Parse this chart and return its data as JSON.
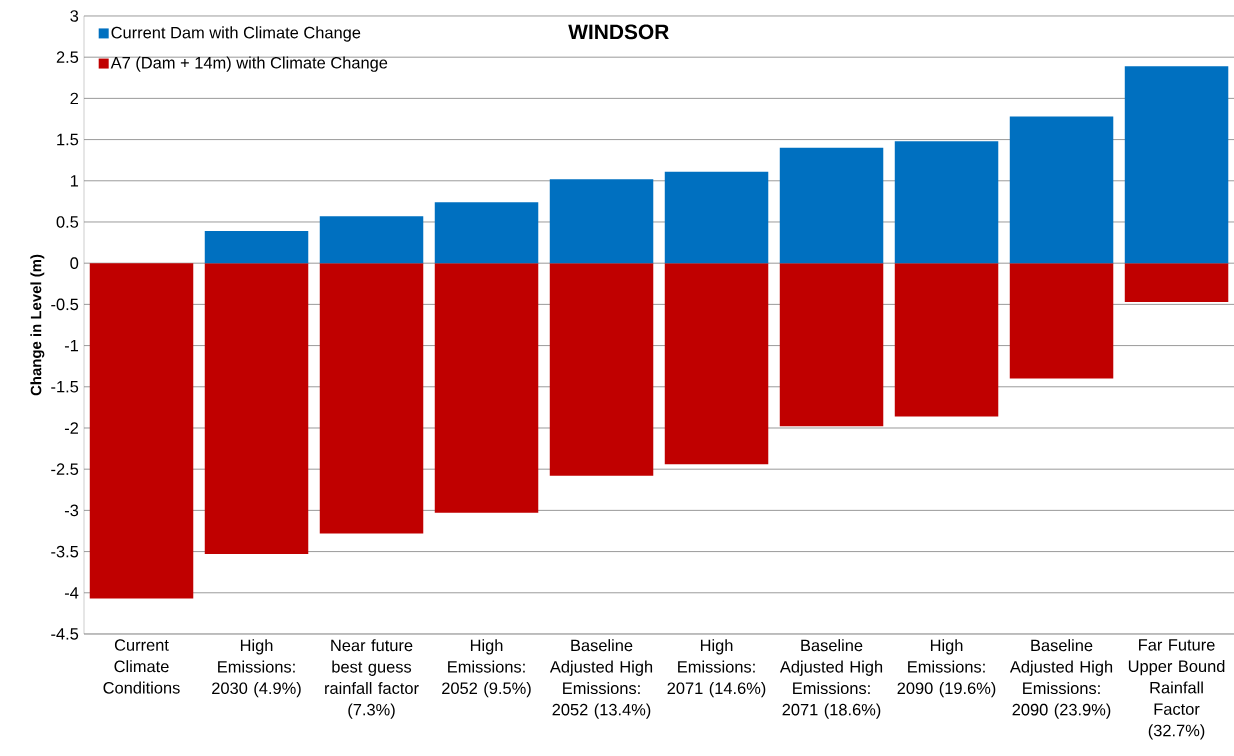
{
  "chart_data": {
    "type": "bar",
    "title": "WINDSOR",
    "ylabel": "Change in Level (m)",
    "categories": [
      "Current Climate Conditions",
      "High Emissions: 2030 (4.9%)",
      "Near future best guess rainfall factor (7.3%)",
      "High Emissions: 2052 (9.5%)",
      "Baseline Adjusted High Emissions: 2052 (13.4%)",
      "High Emissions: 2071 (14.6%)",
      "Baseline Adjusted High Emissions: 2071 (18.6%)",
      "High Emissions: 2090 (19.6%)",
      "Baseline Adjusted High Emissions: 2090 (23.9%)",
      "Far Future Upper Bound Rainfall Factor (32.7%)"
    ],
    "series": [
      {
        "name": "Current Dam with Climate Change",
        "color": "#0070c0",
        "values": [
          null,
          0.39,
          0.57,
          0.74,
          1.02,
          1.11,
          1.4,
          1.48,
          1.78,
          2.39
        ]
      },
      {
        "name": "A7 (Dam + 14m) with Climate Change",
        "color": "#c00000",
        "values": [
          -4.07,
          -3.53,
          -3.28,
          -3.03,
          -2.58,
          -2.44,
          -1.98,
          -1.86,
          -1.4,
          -0.47
        ]
      }
    ],
    "ylim": [
      -4.5,
      3
    ],
    "yticks": [
      -4.5,
      -4,
      -3.5,
      -3,
      -2.5,
      -2,
      -1.5,
      -1,
      -0.5,
      0,
      0.5,
      1,
      1.5,
      2,
      2.5,
      3
    ],
    "grid": "y",
    "legend": "top left",
    "stacked": true
  }
}
